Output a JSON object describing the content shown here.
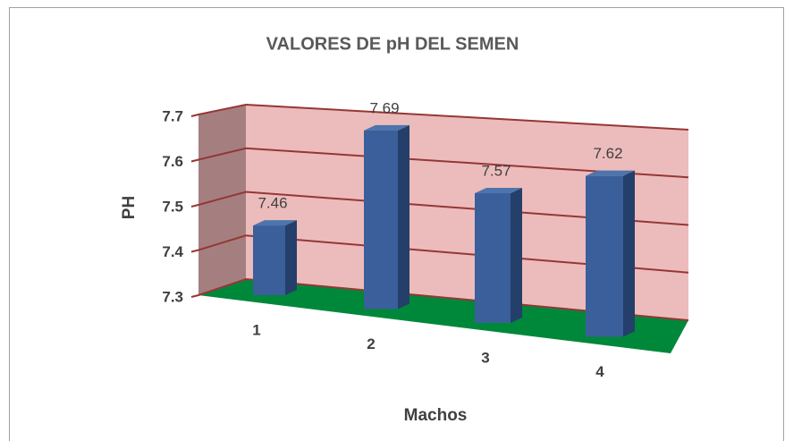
{
  "chart_data": {
    "type": "bar",
    "title": "VALORES DE pH DEL SEMEN",
    "y_label": "PH",
    "x_label": "Machos",
    "categories": [
      "1",
      "2",
      "3",
      "4"
    ],
    "values": [
      7.46,
      7.69,
      7.57,
      7.62
    ],
    "color": "#3a5f9a",
    "ylim": [
      7.3,
      7.7
    ],
    "yticks": [
      7.3,
      7.4,
      7.5,
      7.6,
      7.7
    ],
    "grid": true
  }
}
